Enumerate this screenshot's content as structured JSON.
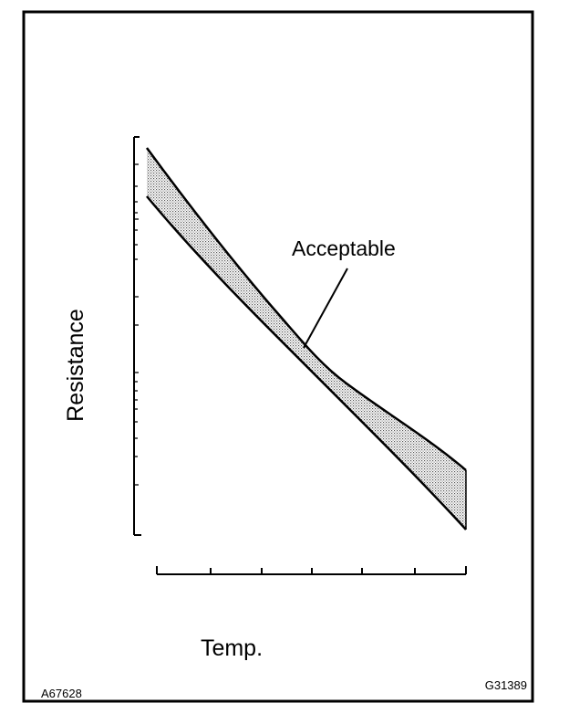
{
  "diagram": {
    "y_axis_label": "Resistance",
    "x_axis_label": "Temp.",
    "band_label": "Acceptable",
    "figure_id_left": "A67628",
    "figure_id_right": "G31389"
  }
}
